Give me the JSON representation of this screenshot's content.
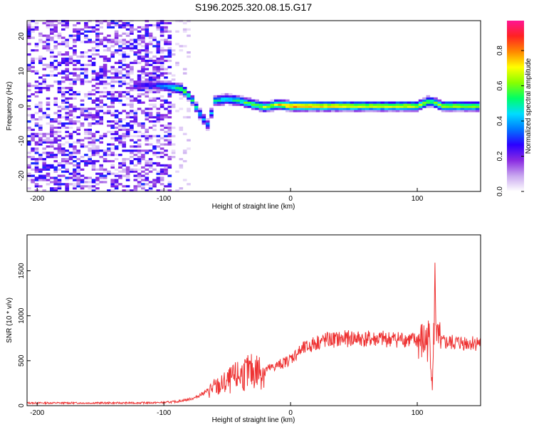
{
  "title": "S196.2025.320.08.15.G17",
  "chart_data": [
    {
      "type": "heatmap",
      "xlabel": "Height of straight line (km)",
      "ylabel": "Frequency (Hz)",
      "xlim": [
        -208,
        150
      ],
      "ylim": [
        -24.5,
        24.5
      ],
      "xticks": [
        -200,
        -100,
        0,
        100
      ],
      "xtick_labels": [
        "-200",
        "-100",
        "0",
        "100"
      ],
      "yticks": [
        -20,
        -10,
        0,
        10,
        20
      ],
      "ytick_labels": [
        "-20",
        "-10",
        "0",
        "10",
        "20"
      ],
      "colorbar": {
        "label": "Normalized spectral amplitude",
        "range": [
          0,
          0.97
        ],
        "ticks": [
          0.0,
          0.2,
          0.4,
          0.6,
          0.8
        ],
        "tick_labels": [
          "0.0",
          "0.2",
          "0.4",
          "0.6",
          "0.8"
        ],
        "colors": [
          "#ffffff",
          "#c9a8ef",
          "#8a2be2",
          "#2b00ff",
          "#0077ff",
          "#00ddff",
          "#00ff66",
          "#88ff00",
          "#ffff00",
          "#ff8800",
          "#ff2222",
          "#ff1493"
        ]
      },
      "ridge": [
        {
          "x": -125,
          "f": 6.0,
          "a": 0.25
        },
        {
          "x": -110,
          "f": 6.0,
          "a": 0.25
        },
        {
          "x": -95,
          "f": 5.5,
          "a": 0.45
        },
        {
          "x": -85,
          "f": 4.8,
          "a": 0.6
        },
        {
          "x": -78,
          "f": 2.0,
          "a": 0.5
        },
        {
          "x": -72,
          "f": -2.0,
          "a": 0.45
        },
        {
          "x": -65,
          "f": -5.5,
          "a": 0.35
        },
        {
          "x": -60,
          "f": 1.5,
          "a": 0.45
        },
        {
          "x": -50,
          "f": 2.0,
          "a": 0.5
        },
        {
          "x": -40,
          "f": 1.5,
          "a": 0.55
        },
        {
          "x": -30,
          "f": 0.5,
          "a": 0.6
        },
        {
          "x": -20,
          "f": -0.3,
          "a": 0.65
        },
        {
          "x": -10,
          "f": 0.5,
          "a": 0.7
        },
        {
          "x": 0,
          "f": 0.0,
          "a": 0.85
        },
        {
          "x": 20,
          "f": 0.0,
          "a": 0.8
        },
        {
          "x": 40,
          "f": 0.0,
          "a": 0.75
        },
        {
          "x": 60,
          "f": 0.0,
          "a": 0.7
        },
        {
          "x": 80,
          "f": 0.0,
          "a": 0.7
        },
        {
          "x": 100,
          "f": 0.0,
          "a": 0.7
        },
        {
          "x": 110,
          "f": 1.5,
          "a": 0.6
        },
        {
          "x": 120,
          "f": 0.0,
          "a": 0.65
        },
        {
          "x": 150,
          "f": 0.0,
          "a": 0.65
        }
      ]
    },
    {
      "type": "line",
      "xlabel": "Height of straight line (km)",
      "ylabel": "SNR (10 * v/v)",
      "xlim": [
        -208,
        150
      ],
      "ylim": [
        0,
        1900
      ],
      "xticks": [
        -200,
        -100,
        0,
        100
      ],
      "xtick_labels": [
        "-200",
        "-100",
        "0",
        "100"
      ],
      "yticks": [
        0,
        500,
        1000,
        1500
      ],
      "ytick_labels": [
        "0",
        "500",
        "1000",
        "1500"
      ],
      "color": "#ee3333",
      "series": [
        {
          "name": "SNR",
          "x": [
            -208,
            -190,
            -170,
            -150,
            -130,
            -110,
            -100,
            -90,
            -80,
            -75,
            -70,
            -65,
            -60,
            -55,
            -50,
            -45,
            -40,
            -35,
            -30,
            -25,
            -20,
            -15,
            -10,
            -5,
            0,
            5,
            10,
            15,
            20,
            25,
            30,
            40,
            50,
            60,
            70,
            80,
            90,
            100,
            105,
            110,
            112,
            114,
            116,
            118,
            120,
            130,
            140,
            150
          ],
          "y": [
            30,
            30,
            30,
            30,
            30,
            32,
            35,
            45,
            70,
            90,
            130,
            170,
            200,
            220,
            260,
            300,
            340,
            360,
            380,
            390,
            400,
            420,
            450,
            480,
            520,
            580,
            630,
            660,
            700,
            720,
            730,
            740,
            750,
            740,
            740,
            740,
            740,
            720,
            700,
            740,
            200,
            1300,
            700,
            690,
            700,
            700,
            700,
            700
          ]
        }
      ]
    }
  ]
}
